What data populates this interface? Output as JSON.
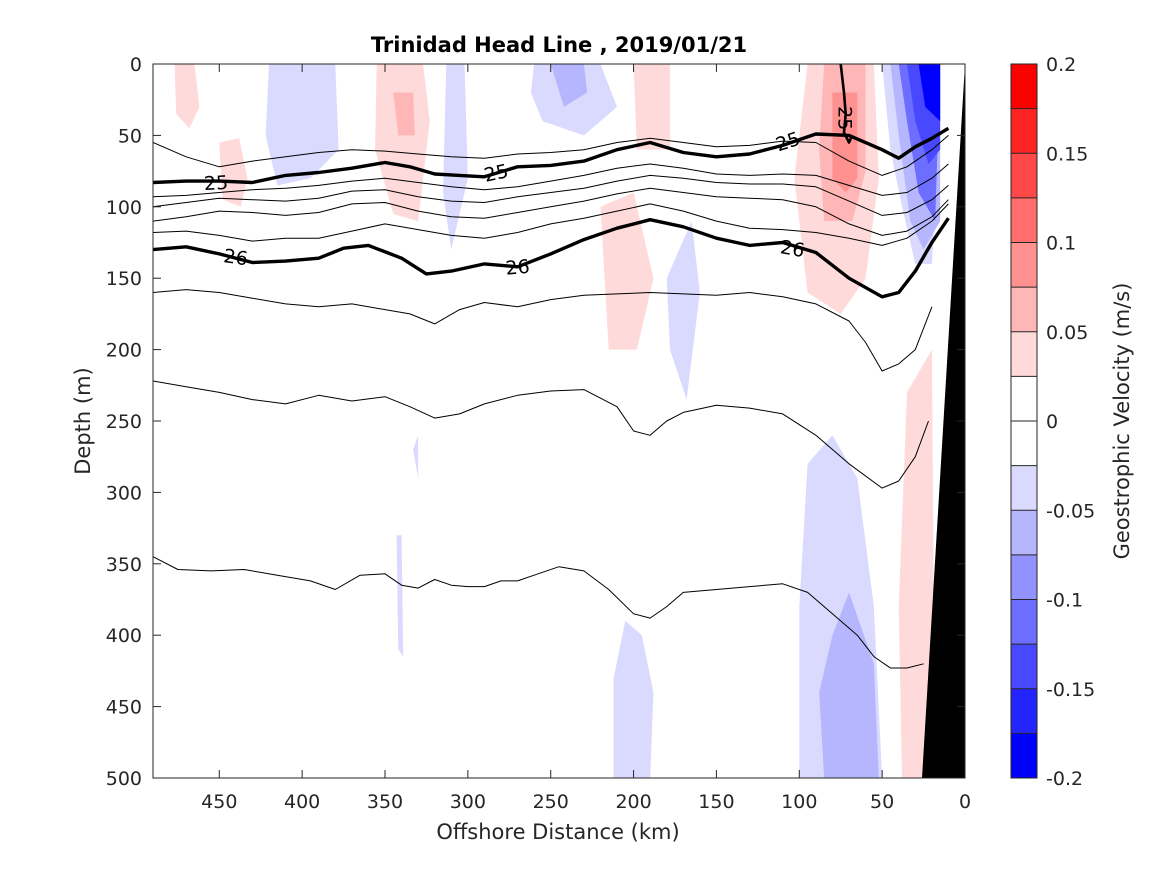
{
  "chart_data": {
    "type": "contour",
    "title": "Trinidad Head Line , 2019/01/21",
    "xlabel": "Offshore Distance (km)",
    "ylabel": "Depth (m)",
    "xlim": [
      490,
      0
    ],
    "x_reversed": true,
    "ylim": [
      0,
      500
    ],
    "y_reversed": true,
    "x_ticks": [
      450,
      400,
      350,
      300,
      250,
      200,
      150,
      100,
      50,
      0
    ],
    "y_ticks": [
      0,
      50,
      100,
      150,
      200,
      250,
      300,
      350,
      400,
      450,
      500
    ],
    "colorbar": {
      "label": "Geostrophic Velocity (m/s)",
      "range": [
        -0.2,
        0.2
      ],
      "ticks": [
        0.2,
        0.15,
        0.1,
        0.05,
        0,
        -0.05,
        -0.1,
        -0.15,
        -0.2
      ],
      "tick_labels": [
        "0.2",
        "0.15",
        "0.1",
        "0.05",
        "0",
        "-0.05",
        "-0.1",
        "-0.15",
        "-0.2"
      ],
      "levels": 16,
      "colors_top_to_bottom": [
        "#ff0000",
        "#ff2424",
        "#ff4848",
        "#ff6d6d",
        "#ff9191",
        "#ffb6b6",
        "#ffdada",
        "#ffffff",
        "#ffffff",
        "#dadaff",
        "#b6b6ff",
        "#9191ff",
        "#6d6dff",
        "#4848ff",
        "#2424ff",
        "#0000ff"
      ]
    },
    "density_isopycnals": {
      "labeled": [
        {
          "label": "25",
          "x": [
            490,
            470,
            450,
            430,
            410,
            390,
            370,
            350,
            335,
            320,
            305,
            290,
            270,
            250,
            230,
            210,
            190,
            170,
            150,
            130,
            110,
            90,
            70,
            50,
            40,
            30,
            20,
            10
          ],
          "y": [
            83,
            82,
            82,
            83,
            78,
            76,
            73,
            69,
            72,
            77,
            78,
            79,
            72,
            71,
            68,
            60,
            55,
            62,
            65,
            63,
            57,
            49,
            50,
            60,
            66,
            58,
            52,
            45
          ]
        },
        {
          "label": "26",
          "x": [
            490,
            470,
            450,
            430,
            410,
            390,
            375,
            360,
            340,
            325,
            310,
            290,
            270,
            250,
            230,
            210,
            190,
            170,
            150,
            130,
            110,
            90,
            70,
            50,
            40,
            30,
            20,
            10
          ],
          "y": [
            130,
            128,
            133,
            139,
            138,
            136,
            129,
            127,
            136,
            147,
            145,
            140,
            142,
            133,
            123,
            115,
            109,
            114,
            122,
            127,
            125,
            132,
            150,
            163,
            160,
            145,
            125,
            108
          ]
        }
      ],
      "unlabeled": [
        {
          "x": [
            490,
            470,
            450,
            430,
            410,
            390,
            370,
            350,
            330,
            310,
            290,
            270,
            250,
            230,
            210,
            190,
            170,
            150,
            130,
            110,
            90,
            70,
            50,
            35,
            20,
            10
          ],
          "y": [
            55,
            65,
            72,
            68,
            65,
            62,
            60,
            61,
            63,
            65,
            66,
            63,
            62,
            60,
            55,
            52,
            55,
            58,
            57,
            54,
            55,
            68,
            78,
            72,
            60,
            50
          ]
        },
        {
          "x": [
            490,
            470,
            450,
            430,
            410,
            390,
            370,
            350,
            330,
            310,
            290,
            270,
            250,
            230,
            210,
            190,
            170,
            150,
            130,
            110,
            90,
            70,
            50,
            35,
            20,
            10
          ],
          "y": [
            93,
            92,
            90,
            88,
            87,
            85,
            82,
            80,
            83,
            86,
            88,
            86,
            82,
            78,
            73,
            70,
            73,
            77,
            78,
            77,
            78,
            85,
            92,
            90,
            80,
            70
          ]
        },
        {
          "x": [
            490,
            470,
            450,
            430,
            410,
            390,
            370,
            350,
            330,
            310,
            290,
            270,
            250,
            230,
            210,
            190,
            170,
            150,
            130,
            110,
            90,
            70,
            50,
            35,
            20,
            10
          ],
          "y": [
            100,
            97,
            94,
            95,
            96,
            94,
            89,
            88,
            93,
            96,
            97,
            93,
            90,
            87,
            82,
            78,
            80,
            83,
            84,
            84,
            86,
            96,
            106,
            104,
            95,
            85
          ]
        },
        {
          "x": [
            490,
            470,
            450,
            430,
            410,
            390,
            370,
            350,
            330,
            310,
            290,
            270,
            250,
            230,
            210,
            190,
            170,
            150,
            130,
            110,
            90,
            70,
            50,
            35,
            20,
            10
          ],
          "y": [
            110,
            107,
            103,
            104,
            106,
            104,
            98,
            97,
            103,
            107,
            108,
            104,
            100,
            96,
            91,
            87,
            90,
            93,
            94,
            95,
            100,
            112,
            120,
            117,
            107,
            95
          ]
        },
        {
          "x": [
            490,
            470,
            450,
            430,
            410,
            390,
            370,
            350,
            330,
            310,
            290,
            270,
            250,
            230,
            210,
            190,
            170,
            150,
            130,
            110,
            90,
            70,
            50,
            35,
            20,
            10
          ],
          "y": [
            118,
            117,
            120,
            124,
            122,
            122,
            117,
            112,
            116,
            120,
            122,
            118,
            112,
            108,
            103,
            98,
            103,
            110,
            115,
            116,
            118,
            122,
            127,
            122,
            110,
            98
          ]
        },
        {
          "x": [
            490,
            470,
            450,
            430,
            410,
            390,
            370,
            350,
            335,
            320,
            305,
            290,
            270,
            250,
            230,
            210,
            190,
            170,
            150,
            130,
            110,
            90,
            70,
            60,
            50,
            40,
            30,
            20
          ],
          "y": [
            160,
            158,
            160,
            164,
            168,
            170,
            168,
            172,
            175,
            182,
            172,
            167,
            170,
            165,
            162,
            161,
            160,
            161,
            162,
            160,
            163,
            168,
            180,
            195,
            215,
            210,
            200,
            170
          ]
        },
        {
          "x": [
            490,
            470,
            450,
            430,
            410,
            390,
            370,
            350,
            335,
            320,
            305,
            290,
            270,
            250,
            230,
            210,
            200,
            190,
            180,
            170,
            150,
            130,
            110,
            90,
            70,
            50,
            40,
            30,
            22
          ],
          "y": [
            222,
            226,
            230,
            235,
            238,
            232,
            236,
            233,
            240,
            248,
            245,
            238,
            232,
            229,
            228,
            240,
            257,
            260,
            250,
            244,
            239,
            241,
            245,
            260,
            280,
            297,
            292,
            275,
            250
          ]
        },
        {
          "x": [
            490,
            475,
            455,
            435,
            415,
            395,
            380,
            365,
            350,
            340,
            330,
            320,
            310,
            300,
            290,
            280,
            270,
            260,
            245,
            230,
            215,
            200,
            190,
            180,
            170,
            150,
            130,
            110,
            95,
            80,
            65,
            55,
            45,
            35,
            25
          ],
          "y": [
            345,
            354,
            355,
            354,
            358,
            362,
            368,
            358,
            357,
            365,
            367,
            361,
            365,
            366,
            366,
            362,
            362,
            358,
            352,
            355,
            368,
            385,
            388,
            380,
            370,
            368,
            366,
            364,
            370,
            385,
            400,
            415,
            423,
            423,
            420
          ]
        }
      ]
    },
    "velocity_patches": [
      {
        "sign": "positive",
        "v": 0.05,
        "center_km": 460,
        "center_depth": 30
      },
      {
        "sign": "positive",
        "v": 0.05,
        "center_km": 345,
        "center_depth": 55
      },
      {
        "sign": "positive",
        "v": 0.05,
        "center_km": 185,
        "center_depth": 25
      },
      {
        "sign": "positive",
        "v": 0.05,
        "center_km": 205,
        "center_depth": 150
      },
      {
        "sign": "positive",
        "v": 0.1,
        "center_km": 75,
        "center_depth": 80
      },
      {
        "sign": "positive",
        "v": 0.05,
        "center_km": 25,
        "center_depth": 380
      },
      {
        "sign": "negative",
        "v": -0.05,
        "center_km": 405,
        "center_depth": 40
      },
      {
        "sign": "negative",
        "v": -0.05,
        "center_km": 235,
        "center_depth": 35
      },
      {
        "sign": "negative",
        "v": -0.05,
        "center_km": 170,
        "center_depth": 200
      },
      {
        "sign": "negative",
        "v": -0.05,
        "center_km": 195,
        "center_depth": 460
      },
      {
        "sign": "negative",
        "v": -0.1,
        "center_km": 75,
        "center_depth": 420
      },
      {
        "sign": "negative",
        "v": -0.2,
        "center_km": 20,
        "center_depth": 40
      }
    ]
  }
}
